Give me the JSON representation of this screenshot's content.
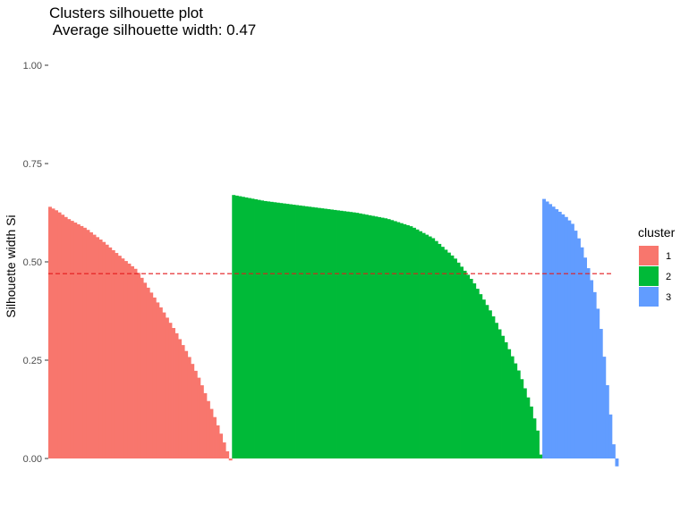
{
  "chart_data": {
    "type": "bar",
    "title": "Clusters silhouette plot",
    "subtitle": " Average silhouette width: 0.47",
    "xlabel": "",
    "ylabel": "Silhouette width Si",
    "ylim": [
      0,
      1
    ],
    "yticks": [
      "0.00",
      "0.25",
      "0.50",
      "0.75",
      "1.00"
    ],
    "ytick_values": [
      0,
      0.25,
      0.5,
      0.75,
      1.0
    ],
    "grid": false,
    "average_line": {
      "value": 0.47,
      "color": "#e41a1c",
      "style": "dashed"
    },
    "legend": {
      "title": "cluster",
      "placement": "right"
    },
    "series": [
      {
        "name": "1",
        "color": "#F8766D",
        "count": 58,
        "profile": [
          [
            0,
            0.64
          ],
          [
            0.04,
            0.63
          ],
          [
            0.1,
            0.61
          ],
          [
            0.2,
            0.585
          ],
          [
            0.3,
            0.55
          ],
          [
            0.4,
            0.51
          ],
          [
            0.48,
            0.48
          ],
          [
            0.55,
            0.43
          ],
          [
            0.62,
            0.38
          ],
          [
            0.7,
            0.32
          ],
          [
            0.77,
            0.26
          ],
          [
            0.83,
            0.2
          ],
          [
            0.9,
            0.12
          ],
          [
            0.95,
            0.06
          ],
          [
            0.985,
            0.015
          ],
          [
            1,
            -0.005
          ]
        ]
      },
      {
        "name": "2",
        "color": "#00BA38",
        "count": 98,
        "profile": [
          [
            0,
            0.67
          ],
          [
            0.1,
            0.655
          ],
          [
            0.2,
            0.645
          ],
          [
            0.3,
            0.635
          ],
          [
            0.4,
            0.625
          ],
          [
            0.5,
            0.61
          ],
          [
            0.58,
            0.59
          ],
          [
            0.65,
            0.56
          ],
          [
            0.72,
            0.51
          ],
          [
            0.78,
            0.45
          ],
          [
            0.84,
            0.37
          ],
          [
            0.89,
            0.29
          ],
          [
            0.93,
            0.22
          ],
          [
            0.97,
            0.13
          ],
          [
            0.99,
            0.07
          ],
          [
            1,
            0.01
          ]
        ]
      },
      {
        "name": "3",
        "color": "#619CFF",
        "count": 24,
        "profile": [
          [
            0,
            0.66
          ],
          [
            0.1,
            0.645
          ],
          [
            0.2,
            0.63
          ],
          [
            0.3,
            0.615
          ],
          [
            0.4,
            0.595
          ],
          [
            0.5,
            0.55
          ],
          [
            0.6,
            0.49
          ],
          [
            0.7,
            0.42
          ],
          [
            0.77,
            0.35
          ],
          [
            0.85,
            0.22
          ],
          [
            0.92,
            0.1
          ],
          [
            0.96,
            0.03
          ],
          [
            1,
            -0.02
          ]
        ]
      }
    ]
  }
}
